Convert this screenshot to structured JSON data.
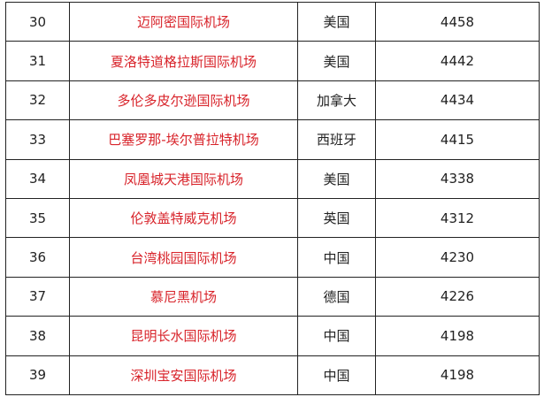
{
  "table": {
    "rows": [
      {
        "rank": "30",
        "name": "迈阿密国际机场",
        "country": "美国",
        "value": "4458"
      },
      {
        "rank": "31",
        "name": "夏洛特道格拉斯国际机场",
        "country": "美国",
        "value": "4442"
      },
      {
        "rank": "32",
        "name": "多伦多皮尔逊国际机场",
        "country": "加拿大",
        "value": "4434"
      },
      {
        "rank": "33",
        "name": "巴塞罗那-埃尔普拉特机场",
        "country": "西班牙",
        "value": "4415"
      },
      {
        "rank": "34",
        "name": "凤凰城天港国际机场",
        "country": "美国",
        "value": "4338"
      },
      {
        "rank": "35",
        "name": "伦敦盖特威克机场",
        "country": "英国",
        "value": "4312"
      },
      {
        "rank": "36",
        "name": "台湾桃园国际机场",
        "country": "中国",
        "value": "4230"
      },
      {
        "rank": "37",
        "name": "慕尼黑机场",
        "country": "德国",
        "value": "4226"
      },
      {
        "rank": "38",
        "name": "昆明长水国际机场",
        "country": "中国",
        "value": "4198"
      },
      {
        "rank": "39",
        "name": "深圳宝安国际机场",
        "country": "中国",
        "value": "4198"
      }
    ]
  },
  "colors": {
    "name": "#d8232a"
  }
}
